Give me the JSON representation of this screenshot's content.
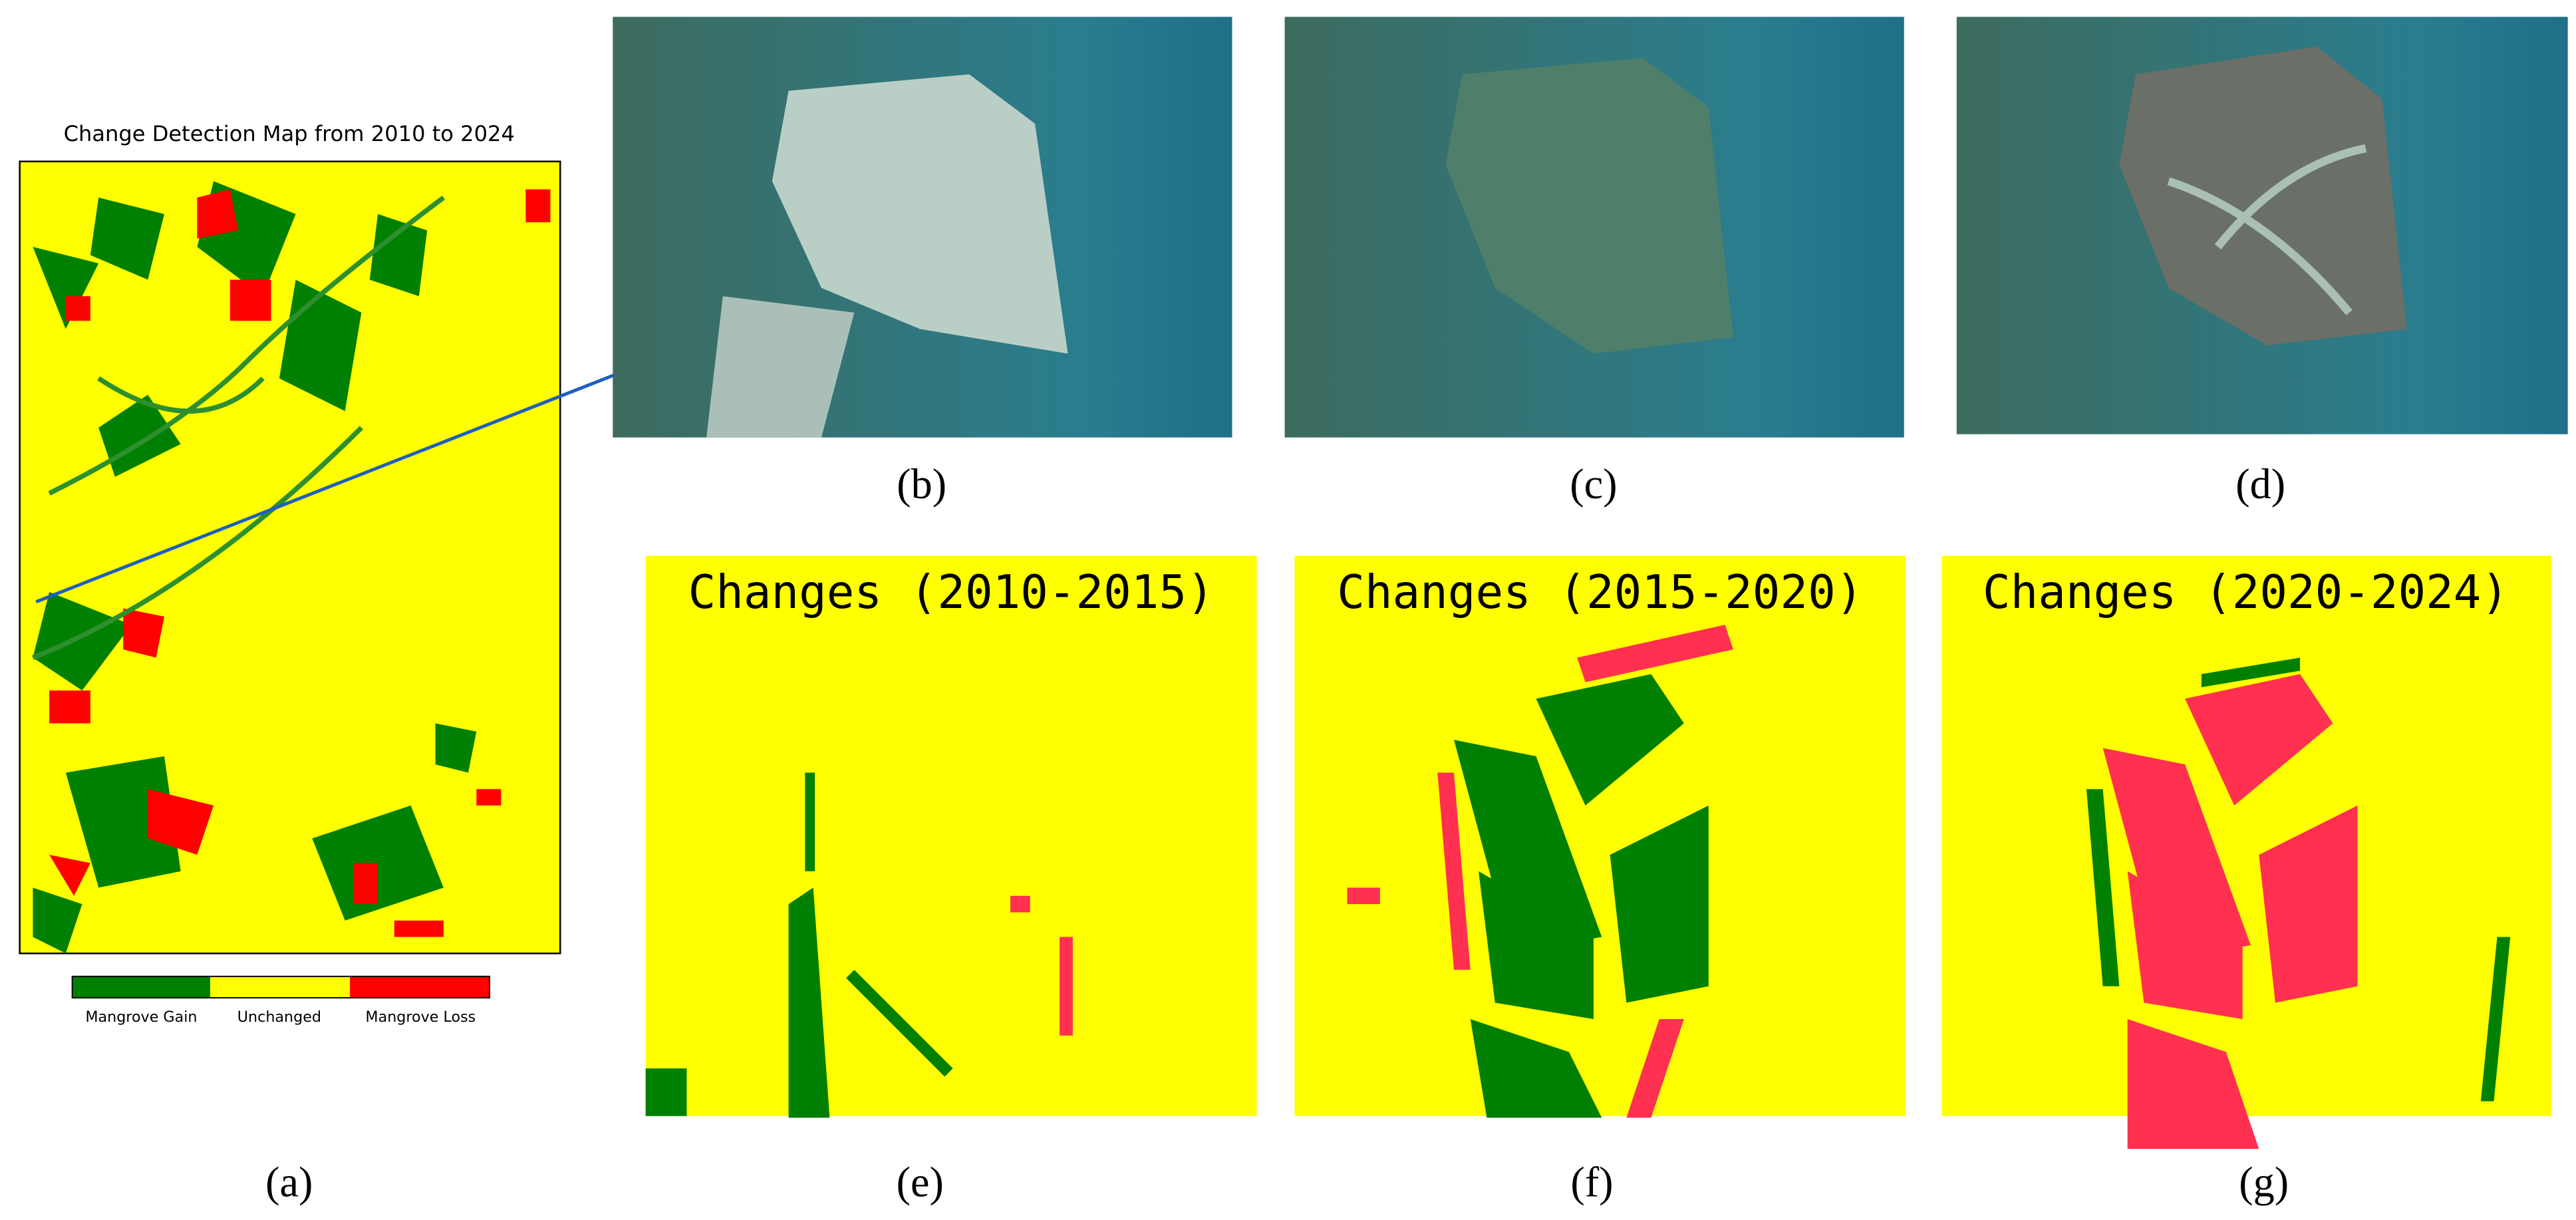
{
  "panels": [
    {
      "label": "(a)",
      "title": "Change Detection Map from 2010 to 2024",
      "legend": [
        "Mangrove Gain",
        "Unchanged",
        "Mangrove Loss"
      ]
    },
    {
      "label": "(b)"
    },
    {
      "label": "(c)"
    },
    {
      "label": "(d)"
    },
    {
      "label": "(e)",
      "title": "Changes (2010-2015)"
    },
    {
      "label": "(f)",
      "title": "Changes (2015-2020)"
    },
    {
      "label": "(g)",
      "title": "Changes (2020-2024)"
    }
  ]
}
